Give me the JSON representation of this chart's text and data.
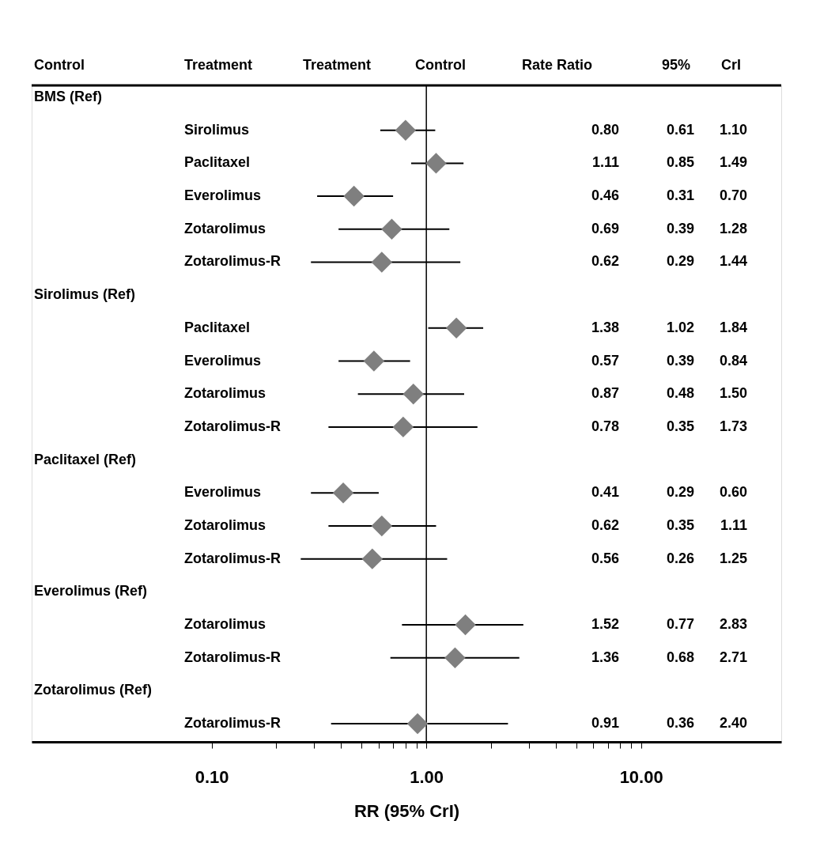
{
  "chart_data": {
    "type": "scatter",
    "orientation": "horizontal",
    "xlabel": "RR (95% CrI)",
    "annotations": [
      "Control",
      "Treatment",
      "Treatment",
      "Control",
      "Rate Ratio",
      "95%",
      "CrI",
      "0.80",
      "0.61",
      "1.10",
      "1.11",
      "0.85",
      "1.49",
      "0.46",
      "0.31",
      "0.70",
      "0.69",
      "0.39",
      "1.28",
      "0.62",
      "0.29",
      "1.44",
      "1.38",
      "1.02",
      "1.84",
      "0.57",
      "0.39",
      "0.84",
      "0.87",
      "0.48",
      "1.50",
      "0.78",
      "0.35",
      "1.73",
      "0.41",
      "0.29",
      "0.60",
      "0.62",
      "0.35",
      "1.11",
      "0.56",
      "0.26",
      "1.25",
      "1.52",
      "0.77",
      "2.83",
      "1.36",
      "0.68",
      "2.71",
      "0.91",
      "0.36",
      "2.40"
    ],
    "categories": [
      "BMS (Ref)",
      "Sirolimus",
      "Paclitaxel",
      "Everolimus",
      "Zotarolimus",
      "Zotarolimus-R",
      "Sirolimus (Ref)",
      "Paclitaxel",
      "Everolimus",
      "Zotarolimus",
      "Zotarolimus-R",
      "Paclitaxel (Ref)",
      "Everolimus",
      "Zotarolimus",
      "Zotarolimus-R",
      "Everolimus (Ref)",
      "Zotarolimus",
      "Zotarolimus-R",
      "Zotarolimus (Ref)",
      "Zotarolimus-R"
    ],
    "values": [
      null,
      0.8,
      1.11,
      0.46,
      0.69,
      0.62,
      null,
      1.38,
      0.57,
      0.87,
      0.78,
      null,
      0.41,
      0.62,
      0.56,
      null,
      1.52,
      1.36,
      null,
      0.91
    ],
    "errors": [
      null,
      [
        0.61,
        1.1
      ],
      [
        0.85,
        1.49
      ],
      [
        0.31,
        0.7
      ],
      [
        0.39,
        1.28
      ],
      [
        0.29,
        1.44
      ],
      null,
      [
        1.02,
        1.84
      ],
      [
        0.39,
        0.84
      ],
      [
        0.48,
        1.5
      ],
      [
        0.35,
        1.73
      ],
      null,
      [
        0.29,
        0.6
      ],
      [
        0.35,
        1.11
      ],
      [
        0.26,
        1.25
      ],
      null,
      [
        0.77,
        2.83
      ],
      [
        0.68,
        2.71
      ],
      null,
      [
        0.36,
        2.4
      ]
    ],
    "color": "#7f7f7f",
    "marker": "diamond",
    "log": "x",
    "xlim": [
      0.0145,
      45
    ],
    "xticks": [
      {
        "value": 0.1,
        "label": "0.10"
      },
      {
        "value": 0.2,
        "label": null
      },
      {
        "value": 0.3,
        "label": null
      },
      {
        "value": 0.4,
        "label": null
      },
      {
        "value": 0.5,
        "label": null
      },
      {
        "value": 0.6,
        "label": null
      },
      {
        "value": 0.7,
        "label": null
      },
      {
        "value": 0.8,
        "label": null
      },
      {
        "value": 0.9,
        "label": null
      },
      {
        "value": 1,
        "label": "1.00"
      },
      {
        "value": 2,
        "label": null
      },
      {
        "value": 3,
        "label": null
      },
      {
        "value": 4,
        "label": null
      },
      {
        "value": 5,
        "label": null
      },
      {
        "value": 6,
        "label": null
      },
      {
        "value": 7,
        "label": null
      },
      {
        "value": 8,
        "label": null
      },
      {
        "value": 9,
        "label": null
      },
      {
        "value": 10,
        "label": "10.00"
      }
    ],
    "ref_lines": [
      {
        "axis": "x",
        "value": 1,
        "color": "#000000"
      }
    ],
    "grid": false
  }
}
